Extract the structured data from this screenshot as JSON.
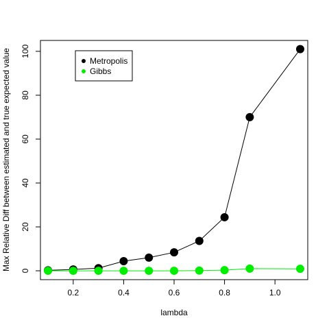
{
  "chart_data": {
    "type": "line",
    "title": "",
    "xlabel": "lambda",
    "ylabel": "Max Relative Diff between estimated and true expected value",
    "xlim": [
      0.07,
      1.13
    ],
    "ylim": [
      -4.04,
      104.96
    ],
    "x_ticks": [
      0.2,
      0.4,
      0.6,
      0.8,
      1.0
    ],
    "x_tick_labels": [
      "0.2",
      "0.4",
      "0.6",
      "0.8",
      "1.0"
    ],
    "y_ticks": [
      0,
      20,
      40,
      60,
      80,
      100
    ],
    "y_tick_labels": [
      "0",
      "20",
      "40",
      "60",
      "80",
      "100"
    ],
    "grid": false,
    "legend_position": "top-left",
    "series": [
      {
        "name": "Metropolis",
        "color": "#000000",
        "x": [
          0.1,
          0.2,
          0.3,
          0.4,
          0.5,
          0.6,
          0.7,
          0.8,
          0.9,
          1.1
        ],
        "values": [
          0.2,
          0.6,
          1.2,
          4.4,
          6.0,
          8.4,
          13.6,
          24.4,
          70.0,
          101.0
        ]
      },
      {
        "name": "Gibbs",
        "color": "#00EE00",
        "x": [
          0.1,
          0.2,
          0.3,
          0.4,
          0.5,
          0.6,
          0.7,
          0.8,
          0.9,
          1.1
        ],
        "values": [
          0.0,
          0.0,
          0.0,
          0.0,
          0.0,
          0.0,
          0.1,
          0.3,
          1.0,
          0.9
        ]
      }
    ]
  }
}
